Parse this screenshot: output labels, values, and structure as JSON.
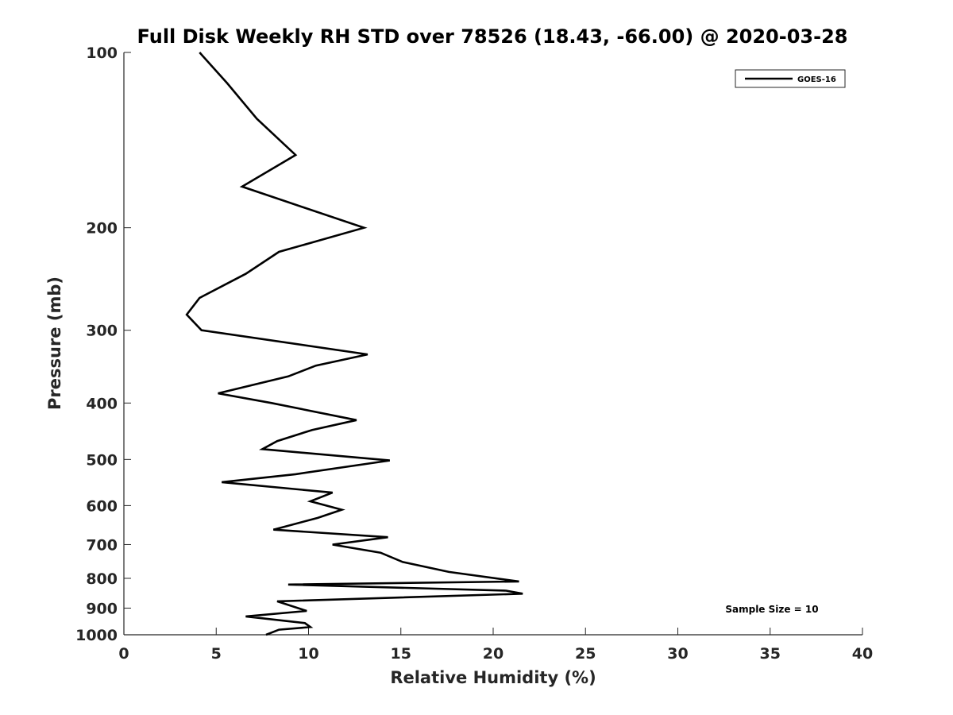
{
  "chart_data": {
    "type": "line",
    "title": "Full Disk Weekly RH STD over 78526 (18.43, -66.00) @ 2020-03-28",
    "xlabel": "Relative Humidity (%)",
    "ylabel": "Pressure (mb)",
    "xlim": [
      0,
      40
    ],
    "ylim": [
      100,
      1000
    ],
    "yscale": "log",
    "yaxis_reversed": true,
    "grid": false,
    "legend_position": "top-right",
    "xticks": [
      0,
      5,
      10,
      15,
      20,
      25,
      30,
      35,
      40
    ],
    "xtick_labels": [
      "0",
      "5",
      "10",
      "15",
      "20",
      "25",
      "30",
      "35",
      "40"
    ],
    "yticks": [
      100,
      200,
      300,
      400,
      500,
      600,
      700,
      800,
      900,
      1000
    ],
    "ytick_labels": [
      "100",
      "200",
      "300",
      "400",
      "500",
      "600",
      "700",
      "800",
      "900",
      "1000"
    ],
    "annotation": "Sample Size = 10",
    "series": [
      {
        "name": "GOES-16",
        "color": "#000000",
        "x": [
          4.1,
          5.6,
          7.2,
          9.3,
          6.4,
          13.0,
          8.4,
          6.6,
          4.1,
          3.4,
          4.2,
          13.2,
          10.4,
          8.9,
          5.1,
          8.0,
          12.6,
          10.2,
          8.3,
          7.5,
          14.4,
          9.3,
          5.3,
          11.3,
          10.1,
          11.8,
          10.5,
          8.1,
          14.3,
          11.3,
          13.9,
          15.1,
          17.6,
          21.4,
          8.9,
          20.7,
          21.6,
          8.3,
          9.9,
          6.6,
          9.8,
          10.1,
          8.4,
          7.7
        ],
        "y": [
          100,
          113,
          130,
          150,
          170,
          200,
          220,
          240,
          264,
          282,
          300,
          330,
          345,
          360,
          385,
          400,
          428,
          445,
          465,
          480,
          502,
          530,
          547,
          570,
          590,
          610,
          630,
          660,
          680,
          700,
          723,
          750,
          780,
          810,
          820,
          840,
          850,
          876,
          910,
          930,
          955,
          970,
          980,
          1000
        ]
      }
    ]
  }
}
